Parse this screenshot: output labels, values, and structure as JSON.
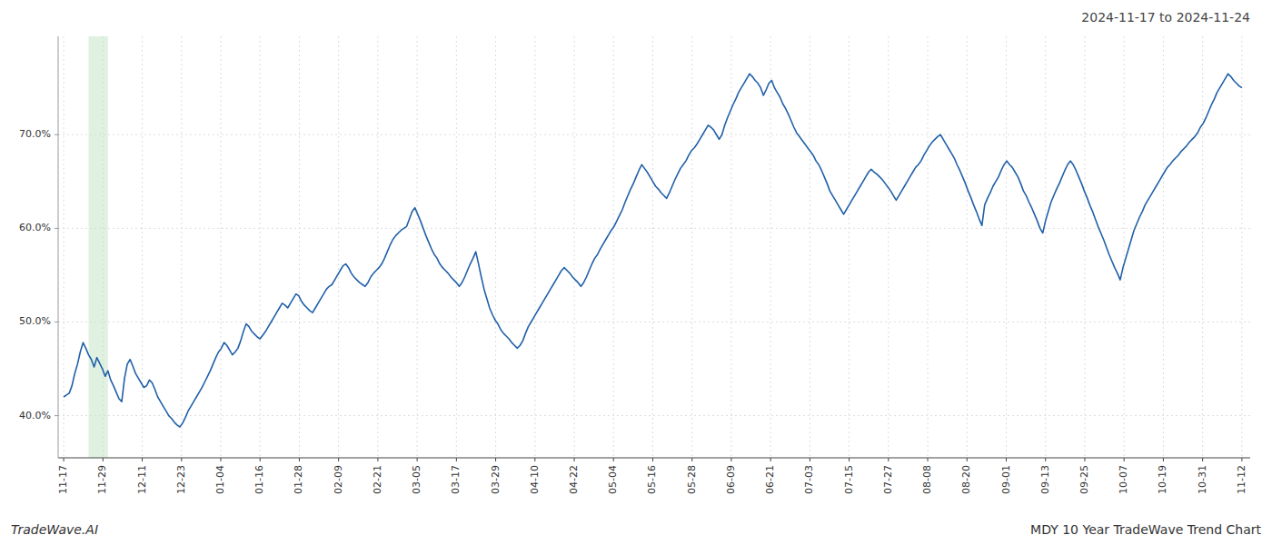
{
  "chart_data": {
    "type": "line",
    "title": "2024-11-17 to 2024-11-24",
    "annotations": [
      "TradeWave.AI",
      "MDY 10 Year TradeWave Trend Chart"
    ],
    "color": "#2060a8",
    "grid": true,
    "ylim": [
      0.355,
      0.805
    ],
    "yticks": [
      {
        "value": 0.4,
        "label": "40.0%"
      },
      {
        "value": 0.5,
        "label": "50.0%"
      },
      {
        "value": 0.6,
        "label": "60.0%"
      },
      {
        "value": 0.7,
        "label": "70.0%"
      }
    ],
    "xlim": [
      -2,
      429
    ],
    "xticks": [
      {
        "value": 0,
        "label": "11-17"
      },
      {
        "value": 14.2,
        "label": "11-29"
      },
      {
        "value": 28.4,
        "label": "12-11"
      },
      {
        "value": 42.6,
        "label": "12-23"
      },
      {
        "value": 56.8,
        "label": "01-04"
      },
      {
        "value": 71,
        "label": "01-16"
      },
      {
        "value": 85.2,
        "label": "01-28"
      },
      {
        "value": 99.4,
        "label": "02-09"
      },
      {
        "value": 113.6,
        "label": "02-21"
      },
      {
        "value": 127.8,
        "label": "03-05"
      },
      {
        "value": 142,
        "label": "03-17"
      },
      {
        "value": 156.2,
        "label": "03-29"
      },
      {
        "value": 170.4,
        "label": "04-10"
      },
      {
        "value": 184.6,
        "label": "04-22"
      },
      {
        "value": 198.8,
        "label": "05-04"
      },
      {
        "value": 213,
        "label": "05-16"
      },
      {
        "value": 227.2,
        "label": "05-28"
      },
      {
        "value": 241.4,
        "label": "06-09"
      },
      {
        "value": 255.6,
        "label": "06-21"
      },
      {
        "value": 269.8,
        "label": "07-03"
      },
      {
        "value": 284,
        "label": "07-15"
      },
      {
        "value": 298.2,
        "label": "07-27"
      },
      {
        "value": 312.4,
        "label": "08-08"
      },
      {
        "value": 326.6,
        "label": "08-20"
      },
      {
        "value": 340.8,
        "label": "09-01"
      },
      {
        "value": 355,
        "label": "09-13"
      },
      {
        "value": 369.2,
        "label": "09-25"
      },
      {
        "value": 383.4,
        "label": "10-07"
      },
      {
        "value": 397.6,
        "label": "10-19"
      },
      {
        "value": 411.8,
        "label": "10-31"
      },
      {
        "value": 426,
        "label": "11-12"
      }
    ],
    "bands": [
      {
        "start": 9,
        "end": 16,
        "color": "#c8e6c9"
      }
    ],
    "values": [
      0.42,
      0.422,
      0.424,
      0.432,
      0.445,
      0.455,
      0.468,
      0.478,
      0.472,
      0.465,
      0.46,
      0.452,
      0.462,
      0.456,
      0.45,
      0.442,
      0.448,
      0.438,
      0.432,
      0.425,
      0.418,
      0.415,
      0.44,
      0.455,
      0.46,
      0.453,
      0.445,
      0.44,
      0.435,
      0.43,
      0.432,
      0.438,
      0.435,
      0.428,
      0.42,
      0.415,
      0.41,
      0.405,
      0.4,
      0.397,
      0.393,
      0.39,
      0.388,
      0.392,
      0.398,
      0.405,
      0.41,
      0.415,
      0.42,
      0.425,
      0.43,
      0.436,
      0.442,
      0.448,
      0.455,
      0.462,
      0.468,
      0.472,
      0.478,
      0.475,
      0.47,
      0.465,
      0.468,
      0.472,
      0.48,
      0.49,
      0.498,
      0.495,
      0.49,
      0.487,
      0.484,
      0.482,
      0.486,
      0.49,
      0.495,
      0.5,
      0.505,
      0.51,
      0.515,
      0.52,
      0.518,
      0.515,
      0.52,
      0.525,
      0.53,
      0.528,
      0.522,
      0.518,
      0.515,
      0.512,
      0.51,
      0.515,
      0.52,
      0.525,
      0.53,
      0.535,
      0.538,
      0.54,
      0.545,
      0.55,
      0.555,
      0.56,
      0.562,
      0.558,
      0.552,
      0.548,
      0.545,
      0.542,
      0.54,
      0.538,
      0.542,
      0.548,
      0.552,
      0.555,
      0.558,
      0.562,
      0.568,
      0.575,
      0.582,
      0.588,
      0.592,
      0.595,
      0.598,
      0.6,
      0.602,
      0.61,
      0.618,
      0.622,
      0.615,
      0.608,
      0.6,
      0.592,
      0.585,
      0.578,
      0.572,
      0.568,
      0.562,
      0.558,
      0.555,
      0.552,
      0.548,
      0.545,
      0.542,
      0.538,
      0.542,
      0.548,
      0.555,
      0.562,
      0.568,
      0.575,
      0.562,
      0.548,
      0.535,
      0.525,
      0.515,
      0.508,
      0.502,
      0.498,
      0.492,
      0.488,
      0.485,
      0.482,
      0.478,
      0.475,
      0.472,
      0.475,
      0.48,
      0.488,
      0.495,
      0.5,
      0.505,
      0.51,
      0.515,
      0.52,
      0.525,
      0.53,
      0.535,
      0.54,
      0.545,
      0.55,
      0.555,
      0.558,
      0.555,
      0.552,
      0.548,
      0.545,
      0.542,
      0.538,
      0.542,
      0.548,
      0.555,
      0.562,
      0.568,
      0.572,
      0.578,
      0.583,
      0.588,
      0.593,
      0.598,
      0.602,
      0.608,
      0.614,
      0.62,
      0.628,
      0.635,
      0.642,
      0.648,
      0.655,
      0.662,
      0.668,
      0.664,
      0.66,
      0.655,
      0.65,
      0.645,
      0.642,
      0.638,
      0.635,
      0.632,
      0.638,
      0.645,
      0.652,
      0.658,
      0.664,
      0.668,
      0.672,
      0.678,
      0.683,
      0.686,
      0.69,
      0.695,
      0.7,
      0.705,
      0.71,
      0.708,
      0.705,
      0.7,
      0.695,
      0.7,
      0.71,
      0.718,
      0.725,
      0.732,
      0.738,
      0.745,
      0.75,
      0.755,
      0.76,
      0.765,
      0.762,
      0.758,
      0.755,
      0.75,
      0.742,
      0.748,
      0.755,
      0.758,
      0.75,
      0.745,
      0.74,
      0.733,
      0.728,
      0.722,
      0.715,
      0.708,
      0.702,
      0.698,
      0.694,
      0.69,
      0.686,
      0.682,
      0.678,
      0.672,
      0.668,
      0.662,
      0.655,
      0.648,
      0.64,
      0.635,
      0.63,
      0.625,
      0.62,
      0.615,
      0.62,
      0.625,
      0.63,
      0.635,
      0.64,
      0.645,
      0.65,
      0.655,
      0.66,
      0.663,
      0.66,
      0.658,
      0.655,
      0.652,
      0.648,
      0.644,
      0.64,
      0.635,
      0.63,
      0.635,
      0.64,
      0.645,
      0.65,
      0.655,
      0.66,
      0.665,
      0.668,
      0.672,
      0.678,
      0.683,
      0.688,
      0.692,
      0.695,
      0.698,
      0.7,
      0.695,
      0.69,
      0.685,
      0.68,
      0.675,
      0.668,
      0.662,
      0.655,
      0.648,
      0.64,
      0.633,
      0.625,
      0.618,
      0.61,
      0.603,
      0.625,
      0.632,
      0.638,
      0.645,
      0.65,
      0.655,
      0.662,
      0.668,
      0.672,
      0.668,
      0.665,
      0.66,
      0.655,
      0.648,
      0.64,
      0.635,
      0.628,
      0.622,
      0.615,
      0.608,
      0.6,
      0.595,
      0.608,
      0.618,
      0.628,
      0.635,
      0.642,
      0.648,
      0.655,
      0.662,
      0.668,
      0.672,
      0.668,
      0.662,
      0.655,
      0.648,
      0.64,
      0.633,
      0.625,
      0.618,
      0.61,
      0.602,
      0.595,
      0.588,
      0.58,
      0.572,
      0.565,
      0.558,
      0.552,
      0.545,
      0.558,
      0.568,
      0.578,
      0.588,
      0.598,
      0.605,
      0.612,
      0.618,
      0.625,
      0.63,
      0.635,
      0.64,
      0.645,
      0.65,
      0.655,
      0.66,
      0.665,
      0.668,
      0.672,
      0.675,
      0.678,
      0.682,
      0.685,
      0.688,
      0.692,
      0.695,
      0.698,
      0.702,
      0.708,
      0.712,
      0.718,
      0.725,
      0.732,
      0.738,
      0.745,
      0.75,
      0.755,
      0.76,
      0.765,
      0.762,
      0.758,
      0.755,
      0.752,
      0.75
    ]
  }
}
